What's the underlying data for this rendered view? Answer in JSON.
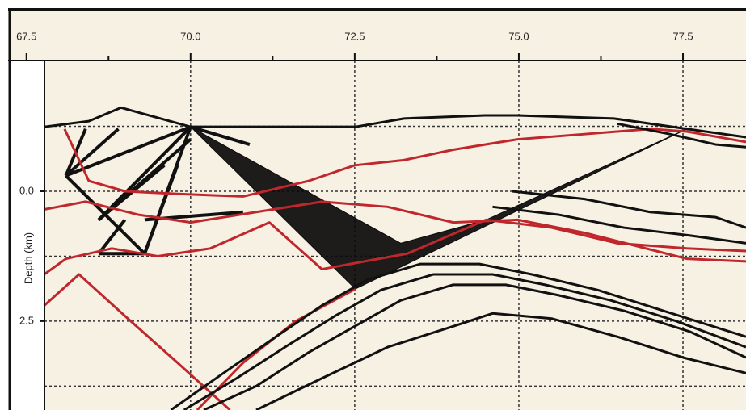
{
  "chart_data": {
    "type": "line",
    "y_label": "Depth (km)",
    "xlim": [
      67.22,
      78.46
    ],
    "ylim": [
      -2.47,
      4.21
    ],
    "y_inverted": true,
    "xticks": [
      67.5,
      {
        "value": 70,
        "label": "70.0"
      },
      72.5,
      {
        "value": 75,
        "label": "75.0"
      },
      77.5
    ],
    "x_minor_ticks": [
      68.75,
      71.25,
      73.75,
      76.25
    ],
    "x_grid": [
      70,
      72.5,
      75,
      77.5
    ],
    "yticks": [
      {
        "value": 0,
        "label": "0.0"
      },
      {
        "value": 2.5,
        "label": "2.5"
      }
    ],
    "y_grid": [
      -1.25,
      0,
      1.25,
      2.5,
      3.75
    ],
    "grid": true,
    "series": [
      {
        "color": "#111111",
        "x": [
          67.77,
          68.45,
          68.94,
          70.0,
          72.51,
          73.25,
          74.48,
          74.98,
          76.45,
          77.56,
          78.46
        ],
        "values": [
          -1.24,
          -1.35,
          -1.61,
          -1.24,
          -1.24,
          -1.4,
          -1.46,
          -1.46,
          -1.4,
          -1.2,
          -1.04
        ]
      },
      {
        "color": "#c0272d",
        "x": [
          68.08,
          68.45,
          69.0,
          69.8,
          70.8,
          71.8,
          72.5,
          73.25,
          74.0,
          74.98,
          76.0,
          77.0,
          77.56,
          78.46
        ],
        "values": [
          -1.2,
          -0.2,
          0.0,
          0.05,
          0.1,
          -0.2,
          -0.5,
          -0.6,
          -0.8,
          -1.0,
          -1.1,
          -1.2,
          -1.15,
          -0.95
        ]
      },
      {
        "color": "#c0272d",
        "x": [
          67.77,
          68.4,
          69.2,
          70.0,
          71.0,
          72.0,
          73.0,
          74.0,
          74.98,
          76.0,
          77.56,
          78.46
        ],
        "values": [
          0.35,
          0.2,
          0.45,
          0.6,
          0.4,
          0.2,
          0.3,
          0.6,
          0.55,
          0.8,
          1.3,
          1.35
        ]
      },
      {
        "color": "#c0272d",
        "x": [
          67.77,
          68.1,
          68.8,
          69.5,
          70.3,
          71.2,
          72.0,
          73.3,
          74.5,
          75.5,
          76.5,
          77.56,
          78.46
        ],
        "values": [
          1.6,
          1.3,
          1.1,
          1.25,
          1.1,
          0.6,
          1.5,
          1.2,
          0.55,
          0.7,
          1.0,
          1.1,
          1.15
        ]
      },
      {
        "color": "#c0272d",
        "x": [
          67.77,
          68.3,
          69.0,
          69.8,
          70.6
        ],
        "values": [
          2.2,
          1.6,
          2.4,
          3.3,
          4.21
        ]
      },
      {
        "color": "#c0272d",
        "x": [
          70.1,
          70.8,
          71.6,
          72.51
        ],
        "values": [
          4.21,
          3.3,
          2.5,
          1.88
        ]
      },
      {
        "color": "#111111",
        "x": [
          69.7,
          70.5,
          71.3,
          72.0,
          72.7,
          73.5,
          74.4,
          75.2,
          76.2,
          77.2,
          78.46
        ],
        "values": [
          4.21,
          3.5,
          2.8,
          2.2,
          1.7,
          1.4,
          1.4,
          1.6,
          1.9,
          2.3,
          2.8
        ]
      },
      {
        "color": "#111111",
        "x": [
          69.9,
          70.7,
          71.5,
          72.2,
          72.9,
          73.7,
          74.6,
          75.4,
          76.4,
          77.4,
          78.46
        ],
        "values": [
          4.21,
          3.6,
          2.95,
          2.4,
          1.9,
          1.6,
          1.6,
          1.8,
          2.1,
          2.5,
          3.0
        ]
      },
      {
        "color": "#111111",
        "x": [
          70.2,
          71.0,
          71.8,
          72.5,
          73.2,
          74.0,
          74.8,
          75.6,
          76.6,
          77.6,
          78.46
        ],
        "values": [
          4.21,
          3.75,
          3.1,
          2.6,
          2.1,
          1.8,
          1.8,
          2.0,
          2.3,
          2.7,
          3.2
        ]
      },
      {
        "color": "#111111",
        "x": [
          71.0,
          72.0,
          73.0,
          74.0,
          74.6,
          75.5,
          76.5,
          77.5,
          78.46
        ],
        "values": [
          4.21,
          3.6,
          3.0,
          2.6,
          2.35,
          2.45,
          2.8,
          3.2,
          3.5
        ]
      },
      {
        "color": "#111111",
        "x": [
          76.5,
          77.3,
          78.0,
          78.46
        ],
        "values": [
          -1.3,
          -1.1,
          -0.9,
          -0.85
        ]
      },
      {
        "color": "#111111",
        "x": [
          74.9,
          76.0,
          77.0,
          78.0,
          78.46
        ],
        "values": [
          0.0,
          0.15,
          0.4,
          0.5,
          0.7
        ]
      },
      {
        "color": "#111111",
        "x": [
          74.6,
          75.6,
          76.6,
          77.6,
          78.46
        ],
        "values": [
          0.3,
          0.45,
          0.7,
          0.85,
          1.0
        ]
      }
    ],
    "ray_region": {
      "color": "#0a0a0a",
      "x": [
        70.0,
        72.51,
        77.56,
        74.5,
        73.2
      ],
      "values": [
        -1.24,
        1.88,
        -1.2,
        0.55,
        1.0
      ]
    },
    "rays": {
      "color": "#111111",
      "x1": [
        68.1,
        68.1,
        68.6,
        68.6,
        69.3,
        69.3,
        68.6,
        68.9,
        70.0,
        70.0,
        70.0,
        69.0,
        68.4
      ],
      "y1": [
        -0.3,
        -0.3,
        0.55,
        0.55,
        0.55,
        1.2,
        1.2,
        -1.2,
        -1.24,
        -1.24,
        -1.24,
        0.55,
        -1.2
      ],
      "x2": [
        70.0,
        69.3,
        70.0,
        69.6,
        70.8,
        69.8,
        69.3,
        68.1,
        69.3,
        68.6,
        70.9,
        68.6,
        68.1
      ],
      "y2": [
        -1.24,
        1.2,
        -1.0,
        -0.5,
        0.4,
        -0.5,
        1.2,
        -0.3,
        1.2,
        0.55,
        -0.9,
        1.2,
        -0.3
      ]
    }
  }
}
